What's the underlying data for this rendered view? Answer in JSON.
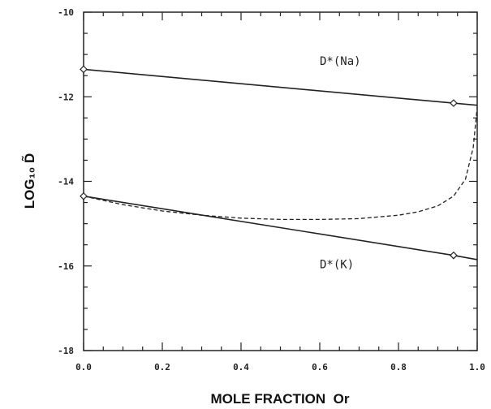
{
  "chart_data": {
    "type": "line",
    "xlabel": "MOLE FRACTION  Or",
    "ylabel": "LOG₁₀ D̃",
    "xlim": [
      0.0,
      1.0
    ],
    "ylim": [
      -18,
      -10
    ],
    "xticks": [
      "0.0",
      "0.2",
      "0.4",
      "0.6",
      "0.8",
      "1.0"
    ],
    "yticks": [
      "-10",
      "-12",
      "-14",
      "-16",
      "-18"
    ],
    "grid": false,
    "series": [
      {
        "name": "D*(Na)",
        "style": "solid",
        "x": [
          0.0,
          0.94,
          1.0
        ],
        "y": [
          -11.35,
          -12.15,
          -12.2
        ],
        "markers_at": [
          0.0,
          0.94
        ]
      },
      {
        "name": "D*(K)",
        "style": "solid",
        "x": [
          0.0,
          0.94,
          1.0
        ],
        "y": [
          -14.35,
          -15.75,
          -15.85
        ],
        "markers_at": [
          0.0,
          0.94
        ]
      },
      {
        "name": "",
        "style": "dashed",
        "x": [
          0.0,
          0.1,
          0.2,
          0.3,
          0.4,
          0.5,
          0.6,
          0.7,
          0.8,
          0.85,
          0.9,
          0.94,
          0.97,
          0.99,
          1.0
        ],
        "y": [
          -14.35,
          -14.55,
          -14.7,
          -14.8,
          -14.87,
          -14.9,
          -14.9,
          -14.88,
          -14.8,
          -14.72,
          -14.58,
          -14.35,
          -13.95,
          -13.2,
          -12.25
        ]
      }
    ],
    "annotations": [
      {
        "text": "D*(Na)",
        "x": 0.6,
        "y": -11.25
      },
      {
        "text": "D*(K)",
        "x": 0.6,
        "y": -16.05
      }
    ]
  }
}
